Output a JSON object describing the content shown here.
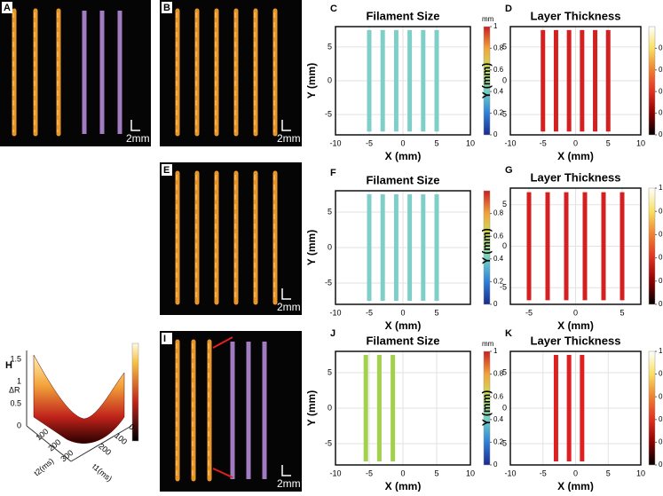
{
  "images": [
    {
      "label": "A",
      "scale": "2mm"
    },
    {
      "label": "B",
      "scale": "2mm"
    },
    {
      "label": "E",
      "scale": "2mm"
    },
    {
      "label": "I",
      "scale": "2mm"
    }
  ],
  "surface": {
    "label": "H",
    "z_label": "ΔR",
    "x_label": "t1(ms)",
    "y_label": "t2(ms)",
    "z_ticks": [
      "0",
      "0.5",
      "1",
      "1.5"
    ],
    "t_ticks": [
      "0",
      "100",
      "200",
      "300"
    ]
  },
  "chart_data": [
    {
      "type": "line",
      "label": "C",
      "title": "Filament Size",
      "x_label": "X (mm)",
      "y_label": "Y (mm)",
      "xlim": [
        -10,
        10
      ],
      "xticks": [
        -10,
        -5,
        0,
        5,
        10
      ],
      "ylim": [
        -8,
        8
      ],
      "yticks": [
        -5,
        0,
        5
      ],
      "grid": true,
      "series": [
        {
          "color": "#7fcfc9",
          "x": [
            -5,
            -5
          ],
          "values": [
            -7.5,
            7.5
          ]
        },
        {
          "color": "#7fcfc9",
          "x": [
            -3,
            -3
          ],
          "values": [
            -7.5,
            7.5
          ]
        },
        {
          "color": "#7fcfc9",
          "x": [
            -1,
            -1
          ],
          "values": [
            -7.5,
            7.5
          ]
        },
        {
          "color": "#7fcfc9",
          "x": [
            1,
            1
          ],
          "values": [
            -7.5,
            7.5
          ]
        },
        {
          "color": "#7fcfc9",
          "x": [
            3,
            3
          ],
          "values": [
            -7.5,
            7.5
          ]
        },
        {
          "color": "#7fcfc9",
          "x": [
            5,
            5
          ],
          "values": [
            -7.5,
            7.5
          ]
        }
      ],
      "colorbar": {
        "unit": "mm",
        "lim": [
          0,
          1
        ],
        "ticks": [
          0,
          0.2,
          0.4,
          0.6,
          0.8,
          1
        ],
        "colors": [
          "#1a2a8c",
          "#2f7fd8",
          "#6fd0c8",
          "#c9e35a",
          "#f3a33a",
          "#c81e1e"
        ]
      }
    },
    {
      "type": "line",
      "label": "D",
      "title": "Layer Thickness",
      "x_label": "X (mm)",
      "y_label": "Y (mm)",
      "xlim": [
        -10,
        10
      ],
      "xticks": [
        -10,
        -5,
        0,
        5,
        10
      ],
      "ylim": [
        -8,
        8
      ],
      "yticks": [
        -5,
        0,
        5
      ],
      "grid": true,
      "series": [
        {
          "color": "#d42020",
          "x": [
            -5,
            -5
          ],
          "values": [
            -7.5,
            7.5
          ]
        },
        {
          "color": "#d42020",
          "x": [
            -3,
            -3
          ],
          "values": [
            -7.5,
            7.5
          ]
        },
        {
          "color": "#d42020",
          "x": [
            -1,
            -1
          ],
          "values": [
            -7.5,
            7.5
          ]
        },
        {
          "color": "#d42020",
          "x": [
            1,
            1
          ],
          "values": [
            -7.5,
            7.5
          ]
        },
        {
          "color": "#d42020",
          "x": [
            3,
            3
          ],
          "values": [
            -7.5,
            7.5
          ]
        },
        {
          "color": "#d42020",
          "x": [
            5,
            5
          ],
          "values": [
            -7.5,
            7.5
          ]
        }
      ],
      "colorbar": {
        "lim": [
          0,
          1
        ],
        "ticks": [
          0,
          0.2,
          0.4,
          0.6,
          0.8
        ],
        "colors": [
          "#000000",
          "#8b0000",
          "#e03020",
          "#f08030",
          "#f8e060",
          "#ffffff"
        ]
      }
    },
    {
      "type": "line",
      "label": "F",
      "title": "Filament Size",
      "x_label": "X (mm)",
      "y_label": "Y (mm)",
      "xlim": [
        -10,
        10
      ],
      "xticks": [
        -10,
        -5,
        0,
        5
      ],
      "ylim": [
        -8,
        8
      ],
      "yticks": [
        -5,
        0,
        5
      ],
      "grid": true,
      "series": [
        {
          "color": "#7fcfc9",
          "x": [
            -5,
            -5
          ],
          "values": [
            -7.5,
            7.5
          ]
        },
        {
          "color": "#7fcfc9",
          "x": [
            -3,
            -3
          ],
          "values": [
            -7.5,
            7.5
          ]
        },
        {
          "color": "#7fcfc9",
          "x": [
            -1,
            -1
          ],
          "values": [
            -7.5,
            7.5
          ]
        },
        {
          "color": "#7fcfc9",
          "x": [
            1,
            1
          ],
          "values": [
            -7.5,
            7.5
          ]
        },
        {
          "color": "#7fcfc9",
          "x": [
            3,
            3
          ],
          "values": [
            -7.5,
            7.5
          ]
        },
        {
          "color": "#7fcfc9",
          "x": [
            5,
            5
          ],
          "values": [
            -7.5,
            7.5
          ]
        }
      ],
      "colorbar": {
        "lim": [
          0,
          1
        ],
        "ticks": [
          0,
          0.2,
          0.4,
          0.6,
          0.8
        ],
        "colors": [
          "#1a2a8c",
          "#2f7fd8",
          "#6fd0c8",
          "#c9e35a",
          "#f3a33a",
          "#c81e1e"
        ]
      }
    },
    {
      "type": "line",
      "label": "G",
      "title": "Layer Thickness",
      "x_label": "X (mm)",
      "y_label": "Y (mm)",
      "xlim": [
        -7,
        7
      ],
      "xticks": [
        -5,
        0,
        5
      ],
      "ylim": [
        -7,
        7
      ],
      "yticks": [
        -5,
        0,
        5
      ],
      "grid": true,
      "series": [
        {
          "color": "#d42020",
          "x": [
            -5,
            -5
          ],
          "values": [
            -6.5,
            6.5
          ]
        },
        {
          "color": "#d42020",
          "x": [
            -3,
            -3
          ],
          "values": [
            -6.5,
            6.5
          ]
        },
        {
          "color": "#d42020",
          "x": [
            -1,
            -1
          ],
          "values": [
            -6.5,
            6.5
          ]
        },
        {
          "color": "#d42020",
          "x": [
            1,
            1
          ],
          "values": [
            -6.5,
            6.5
          ]
        },
        {
          "color": "#d42020",
          "x": [
            3,
            3
          ],
          "values": [
            -6.5,
            6.5
          ]
        },
        {
          "color": "#d42020",
          "x": [
            5,
            5
          ],
          "values": [
            -6.5,
            6.5
          ]
        }
      ],
      "colorbar": {
        "lim": [
          0,
          1
        ],
        "ticks": [
          0,
          0.2,
          0.4,
          0.6,
          0.8,
          1
        ],
        "colors": [
          "#000000",
          "#8b0000",
          "#e03020",
          "#f08030",
          "#f8e060",
          "#ffffff"
        ]
      }
    },
    {
      "type": "line",
      "label": "J",
      "title": "Filament Size",
      "x_label": "X (mm)",
      "y_label": "Y (mm)",
      "xlim": [
        -10,
        10
      ],
      "xticks": [
        -10,
        -5,
        0,
        5,
        10
      ],
      "ylim": [
        -8,
        8
      ],
      "yticks": [
        -5,
        0,
        5
      ],
      "grid": true,
      "series": [
        {
          "color": "#a3d14b",
          "x": [
            -5.5,
            -5.5
          ],
          "values": [
            -7.5,
            7.5
          ]
        },
        {
          "color": "#a3d14b",
          "x": [
            -3.5,
            -3.5
          ],
          "values": [
            -7.5,
            7.5
          ]
        },
        {
          "color": "#a3d14b",
          "x": [
            -1.5,
            -1.5
          ],
          "values": [
            -7.5,
            7.5
          ]
        }
      ],
      "colorbar": {
        "unit": "mm",
        "lim": [
          0,
          1
        ],
        "ticks": [
          0,
          0.2,
          0.4,
          0.6,
          0.8,
          1
        ],
        "colors": [
          "#1a2a8c",
          "#2f7fd8",
          "#6fd0c8",
          "#c9e35a",
          "#f3a33a",
          "#c81e1e"
        ]
      }
    },
    {
      "type": "line",
      "label": "K",
      "title": "Layer Thickness",
      "x_label": "X (mm)",
      "y_label": "Y (mm)",
      "xlim": [
        -10,
        10
      ],
      "xticks": [
        -10,
        -5,
        0,
        5,
        10
      ],
      "ylim": [
        -8,
        8
      ],
      "yticks": [
        -5,
        0,
        5
      ],
      "grid": true,
      "series": [
        {
          "color": "#e02020",
          "x": [
            -3,
            -3
          ],
          "values": [
            -7.5,
            7.5
          ]
        },
        {
          "color": "#e02020",
          "x": [
            -1,
            -1
          ],
          "values": [
            -7.5,
            7.5
          ]
        },
        {
          "color": "#e02020",
          "x": [
            1,
            1
          ],
          "values": [
            -7.5,
            7.5
          ]
        }
      ],
      "colorbar": {
        "lim": [
          0,
          1
        ],
        "ticks": [
          0,
          0.2,
          0.4,
          0.6,
          0.8,
          1
        ],
        "colors": [
          "#000000",
          "#8b0000",
          "#e03020",
          "#f08030",
          "#f8e060",
          "#ffffff"
        ]
      }
    }
  ]
}
